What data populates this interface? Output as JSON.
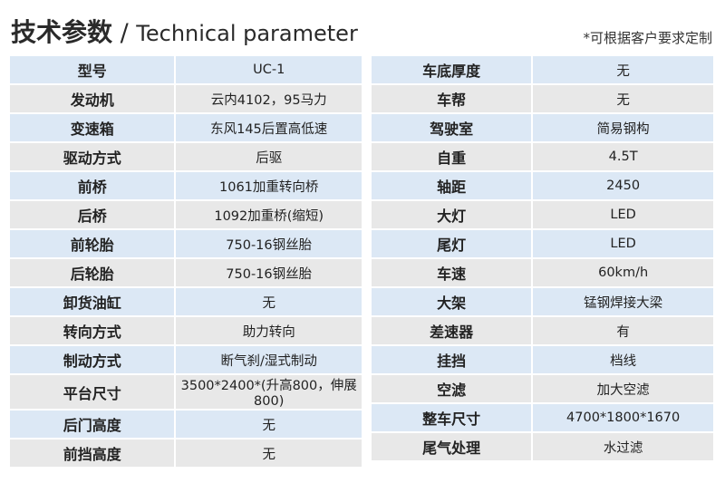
{
  "title": {
    "cn": "技术参数",
    "sep": " / ",
    "en": "Technical parameter"
  },
  "note": "*可根据客户要求定制",
  "left": [
    {
      "k": "型号",
      "v": "UC-1"
    },
    {
      "k": "发动机",
      "v": "云内4102，95马力"
    },
    {
      "k": "变速箱",
      "v": "东风145后置高低速"
    },
    {
      "k": "驱动方式",
      "v": "后驱"
    },
    {
      "k": "前桥",
      "v": "1061加重转向桥"
    },
    {
      "k": "后桥",
      "v": "1092加重桥(缩短)"
    },
    {
      "k": "前轮胎",
      "v": "750-16钢丝胎"
    },
    {
      "k": "后轮胎",
      "v": "750-16钢丝胎"
    },
    {
      "k": "卸货油缸",
      "v": "无"
    },
    {
      "k": "转向方式",
      "v": "助力转向"
    },
    {
      "k": "制动方式",
      "v": "断气刹/湿式制动"
    },
    {
      "k": "平台尺寸",
      "v": "3500*2400*(升高800，伸展800)"
    },
    {
      "k": "后门高度",
      "v": "无"
    },
    {
      "k": "前挡高度",
      "v": "无"
    }
  ],
  "right": [
    {
      "k": "车底厚度",
      "v": "无"
    },
    {
      "k": "车帮",
      "v": "无"
    },
    {
      "k": "驾驶室",
      "v": "简易钢构"
    },
    {
      "k": "自重",
      "v": "4.5T"
    },
    {
      "k": "轴距",
      "v": "2450"
    },
    {
      "k": "大灯",
      "v": "LED"
    },
    {
      "k": "尾灯",
      "v": "LED"
    },
    {
      "k": "车速",
      "v": "60km/h"
    },
    {
      "k": "大架",
      "v": "锰钢焊接大梁"
    },
    {
      "k": "差速器",
      "v": "有"
    },
    {
      "k": "挂挡",
      "v": "档线"
    },
    {
      "k": "空滤",
      "v": "加大空滤"
    },
    {
      "k": "整车尺寸",
      "v": "4700*1800*1670"
    },
    {
      "k": "尾气处理",
      "v": "水过滤"
    }
  ]
}
